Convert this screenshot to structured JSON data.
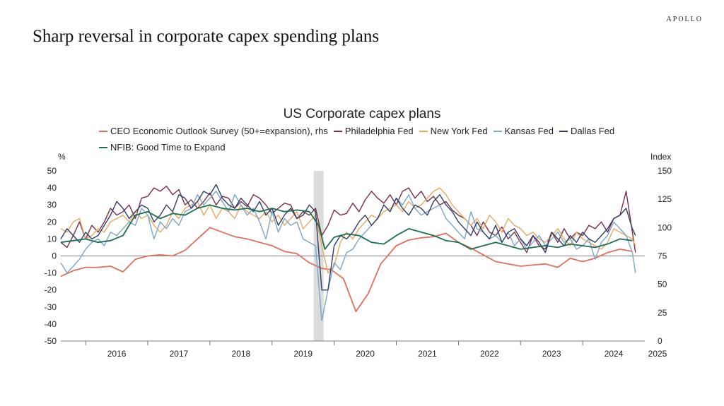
{
  "brand": "APOLLO",
  "page_title": "Sharp reversal in corporate capex spending plans",
  "chart_data": {
    "type": "line",
    "title": "US Corporate capex plans",
    "left_axis_unit": "%",
    "right_axis_unit": "Index",
    "ylim_left": [
      -50,
      50
    ],
    "ylim_right": [
      0,
      150
    ],
    "y_ticks_left": [
      "50",
      "40",
      "30",
      "20",
      "10",
      "0",
      "-10",
      "-20",
      "-30",
      "-40",
      "-50"
    ],
    "y_ticks_right": [
      "150",
      "125",
      "100",
      "75",
      "50",
      "25",
      "0"
    ],
    "x_range": [
      2015.6,
      2025.0
    ],
    "x_ticks": [
      "2016",
      "2017",
      "2018",
      "2019",
      "2020",
      "2021",
      "2022",
      "2023",
      "2024",
      "2025"
    ],
    "shaded_period": [
      2019.67,
      2019.83
    ],
    "grid": false,
    "legend_position": "top",
    "series": [
      {
        "name": "CEO Economic Outlook Survey (50+=expansion), rhs",
        "axis": "right",
        "color": "#e0705c",
        "x": [
          2015.6,
          2015.8,
          2016.0,
          2016.2,
          2016.4,
          2016.6,
          2016.8,
          2017.0,
          2017.2,
          2017.4,
          2017.6,
          2017.8,
          2018.0,
          2018.2,
          2018.4,
          2018.6,
          2018.8,
          2019.0,
          2019.2,
          2019.4,
          2019.6,
          2019.8,
          2019.95,
          2020.15,
          2020.35,
          2020.55,
          2020.75,
          2021.0,
          2021.2,
          2021.4,
          2021.6,
          2021.8,
          2022.0,
          2022.2,
          2022.4,
          2022.6,
          2022.8,
          2023.0,
          2023.2,
          2023.4,
          2023.6,
          2023.8,
          2024.0,
          2024.2,
          2024.4,
          2024.6,
          2024.8
        ],
        "values": [
          57,
          62,
          65,
          65,
          66,
          61,
          72,
          75,
          76,
          75,
          80,
          90,
          100,
          96,
          92,
          90,
          87,
          84,
          79,
          77,
          69,
          64,
          63,
          55,
          26,
          42,
          68,
          84,
          89,
          91,
          92,
          95,
          87,
          82,
          76,
          70,
          68,
          66,
          67,
          68,
          65,
          73,
          70,
          73,
          78,
          81,
          79
        ]
      },
      {
        "name": "Philadelphia Fed",
        "axis": "left",
        "color": "#7b2d4a",
        "x": [
          2015.6,
          2015.7,
          2015.8,
          2015.9,
          2016.0,
          2016.1,
          2016.2,
          2016.3,
          2016.4,
          2016.5,
          2016.6,
          2016.7,
          2016.8,
          2016.9,
          2017.0,
          2017.1,
          2017.2,
          2017.3,
          2017.4,
          2017.5,
          2017.6,
          2017.7,
          2017.8,
          2017.9,
          2018.0,
          2018.1,
          2018.2,
          2018.3,
          2018.4,
          2018.5,
          2018.6,
          2018.7,
          2018.8,
          2018.9,
          2019.0,
          2019.1,
          2019.2,
          2019.3,
          2019.4,
          2019.5,
          2019.6,
          2019.7,
          2019.8,
          2019.9,
          2020.0,
          2020.1,
          2020.2,
          2020.3,
          2020.4,
          2020.5,
          2020.6,
          2020.7,
          2020.8,
          2020.9,
          2021.0,
          2021.1,
          2021.2,
          2021.3,
          2021.4,
          2021.5,
          2021.6,
          2021.7,
          2021.8,
          2021.9,
          2022.0,
          2022.1,
          2022.2,
          2022.3,
          2022.4,
          2022.5,
          2022.6,
          2022.7,
          2022.8,
          2022.9,
          2023.0,
          2023.1,
          2023.2,
          2023.3,
          2023.4,
          2023.5,
          2023.6,
          2023.7,
          2023.8,
          2023.9,
          2024.0,
          2024.1,
          2024.2,
          2024.3,
          2024.4,
          2024.5,
          2024.6,
          2024.7,
          2024.8,
          2024.85
        ],
        "values": [
          8,
          5,
          12,
          20,
          10,
          18,
          14,
          20,
          28,
          24,
          26,
          30,
          22,
          34,
          35,
          40,
          38,
          41,
          36,
          39,
          30,
          33,
          28,
          32,
          37,
          30,
          35,
          34,
          28,
          32,
          29,
          36,
          34,
          30,
          25,
          28,
          31,
          30,
          22,
          26,
          24,
          28,
          12,
          18,
          27,
          24,
          25,
          31,
          26,
          33,
          38,
          34,
          31,
          36,
          30,
          38,
          40,
          34,
          38,
          32,
          35,
          30,
          32,
          27,
          24,
          22,
          18,
          12,
          20,
          14,
          12,
          17,
          10,
          14,
          8,
          2,
          12,
          6,
          4,
          14,
          8,
          16,
          10,
          14,
          12,
          18,
          16,
          20,
          14,
          22,
          24,
          38,
          14,
          2
        ]
      },
      {
        "name": "New York Fed",
        "axis": "left",
        "color": "#e8a860",
        "x": [
          2015.6,
          2015.7,
          2015.8,
          2015.9,
          2016.0,
          2016.1,
          2016.2,
          2016.3,
          2016.4,
          2016.5,
          2016.6,
          2016.7,
          2016.8,
          2016.9,
          2017.0,
          2017.1,
          2017.2,
          2017.3,
          2017.4,
          2017.5,
          2017.6,
          2017.7,
          2017.8,
          2017.9,
          2018.0,
          2018.1,
          2018.2,
          2018.3,
          2018.4,
          2018.5,
          2018.6,
          2018.7,
          2018.8,
          2018.9,
          2019.0,
          2019.1,
          2019.2,
          2019.3,
          2019.4,
          2019.5,
          2019.6,
          2019.7,
          2019.8,
          2019.9,
          2020.0,
          2020.1,
          2020.2,
          2020.3,
          2020.4,
          2020.5,
          2020.6,
          2020.7,
          2020.8,
          2020.9,
          2021.0,
          2021.1,
          2021.2,
          2021.3,
          2021.4,
          2021.5,
          2021.6,
          2021.7,
          2021.8,
          2021.9,
          2022.0,
          2022.1,
          2022.2,
          2022.3,
          2022.4,
          2022.5,
          2022.6,
          2022.7,
          2022.8,
          2022.9,
          2023.0,
          2023.1,
          2023.2,
          2023.3,
          2023.4,
          2023.5,
          2023.6,
          2023.7,
          2023.8,
          2023.9,
          2024.0,
          2024.1,
          2024.2,
          2024.3,
          2024.4,
          2024.5,
          2024.6,
          2024.7,
          2024.8,
          2024.85
        ],
        "values": [
          16,
          14,
          20,
          22,
          10,
          12,
          16,
          14,
          20,
          22,
          24,
          20,
          26,
          22,
          24,
          18,
          14,
          18,
          26,
          22,
          28,
          30,
          32,
          24,
          30,
          22,
          28,
          26,
          22,
          30,
          26,
          24,
          22,
          26,
          20,
          24,
          18,
          22,
          26,
          16,
          20,
          24,
          6,
          -10,
          -6,
          8,
          14,
          10,
          16,
          20,
          24,
          22,
          26,
          28,
          30,
          26,
          32,
          28,
          30,
          34,
          38,
          40,
          36,
          30,
          26,
          22,
          18,
          22,
          16,
          24,
          20,
          14,
          22,
          18,
          16,
          12,
          14,
          10,
          8,
          12,
          16,
          10,
          6,
          14,
          10,
          8,
          6,
          4,
          8,
          16,
          14,
          12,
          10,
          6
        ]
      },
      {
        "name": "Kansas Fed",
        "axis": "left",
        "color": "#7aa6c8",
        "x": [
          2015.6,
          2015.7,
          2015.8,
          2015.9,
          2016.0,
          2016.1,
          2016.2,
          2016.3,
          2016.4,
          2016.5,
          2016.6,
          2016.7,
          2016.8,
          2016.9,
          2017.0,
          2017.1,
          2017.2,
          2017.3,
          2017.4,
          2017.5,
          2017.6,
          2017.7,
          2017.8,
          2017.9,
          2018.0,
          2018.1,
          2018.2,
          2018.3,
          2018.4,
          2018.5,
          2018.6,
          2018.7,
          2018.8,
          2018.9,
          2019.0,
          2019.1,
          2019.2,
          2019.3,
          2019.4,
          2019.5,
          2019.6,
          2019.7,
          2019.8,
          2019.9,
          2020.0,
          2020.1,
          2020.2,
          2020.3,
          2020.4,
          2020.5,
          2020.6,
          2020.7,
          2020.8,
          2020.9,
          2021.0,
          2021.1,
          2021.2,
          2021.3,
          2021.4,
          2021.5,
          2021.6,
          2021.7,
          2021.8,
          2021.9,
          2022.0,
          2022.1,
          2022.2,
          2022.3,
          2022.4,
          2022.5,
          2022.6,
          2022.7,
          2022.8,
          2022.9,
          2023.0,
          2023.1,
          2023.2,
          2023.3,
          2023.4,
          2023.5,
          2023.6,
          2023.7,
          2023.8,
          2023.9,
          2024.0,
          2024.1,
          2024.2,
          2024.3,
          2024.4,
          2024.5,
          2024.6,
          2024.7,
          2024.8,
          2024.85
        ],
        "values": [
          -4,
          -10,
          -6,
          -2,
          4,
          8,
          10,
          6,
          14,
          12,
          16,
          20,
          18,
          28,
          24,
          10,
          20,
          16,
          22,
          18,
          26,
          28,
          36,
          30,
          34,
          38,
          32,
          26,
          36,
          30,
          24,
          28,
          20,
          10,
          26,
          14,
          22,
          18,
          20,
          10,
          8,
          6,
          -38,
          -20,
          -4,
          -8,
          2,
          4,
          10,
          14,
          18,
          22,
          30,
          26,
          34,
          30,
          36,
          28,
          24,
          26,
          28,
          30,
          22,
          18,
          14,
          10,
          26,
          16,
          14,
          10,
          12,
          8,
          14,
          6,
          10,
          4,
          8,
          12,
          6,
          10,
          14,
          8,
          10,
          4,
          6,
          10,
          -2,
          8,
          12,
          20,
          16,
          12,
          2,
          -10
        ]
      },
      {
        "name": "Dallas Fed",
        "axis": "left",
        "color": "#2e3f66",
        "x": [
          2015.6,
          2015.7,
          2015.8,
          2015.9,
          2016.0,
          2016.1,
          2016.2,
          2016.3,
          2016.4,
          2016.5,
          2016.6,
          2016.7,
          2016.8,
          2016.9,
          2017.0,
          2017.1,
          2017.2,
          2017.3,
          2017.4,
          2017.5,
          2017.6,
          2017.7,
          2017.8,
          2017.9,
          2018.0,
          2018.1,
          2018.2,
          2018.3,
          2018.4,
          2018.5,
          2018.6,
          2018.7,
          2018.8,
          2018.9,
          2019.0,
          2019.1,
          2019.2,
          2019.3,
          2019.4,
          2019.5,
          2019.6,
          2019.7,
          2019.8,
          2019.9,
          2020.0,
          2020.1,
          2020.2,
          2020.3,
          2020.4,
          2020.5,
          2020.6,
          2020.7,
          2020.8,
          2020.9,
          2021.0,
          2021.1,
          2021.2,
          2021.3,
          2021.4,
          2021.5,
          2021.6,
          2021.7,
          2021.8,
          2021.9,
          2022.0,
          2022.1,
          2022.2,
          2022.3,
          2022.4,
          2022.5,
          2022.6,
          2022.7,
          2022.8,
          2022.9,
          2023.0,
          2023.1,
          2023.2,
          2023.3,
          2023.4,
          2023.5,
          2023.6,
          2023.7,
          2023.8,
          2023.9,
          2024.0,
          2024.1,
          2024.2,
          2024.3,
          2024.4,
          2024.5,
          2024.6,
          2024.7,
          2024.8,
          2024.85
        ],
        "values": [
          10,
          16,
          12,
          8,
          14,
          10,
          12,
          18,
          24,
          32,
          28,
          22,
          26,
          30,
          28,
          20,
          24,
          30,
          26,
          36,
          34,
          28,
          32,
          38,
          36,
          42,
          34,
          30,
          28,
          34,
          30,
          26,
          32,
          24,
          28,
          18,
          24,
          28,
          22,
          24,
          30,
          26,
          -20,
          -20,
          6,
          12,
          10,
          14,
          20,
          24,
          18,
          22,
          30,
          26,
          34,
          28,
          24,
          30,
          28,
          24,
          32,
          36,
          30,
          26,
          20,
          16,
          12,
          20,
          14,
          10,
          18,
          8,
          14,
          16,
          10,
          6,
          12,
          8,
          2,
          14,
          10,
          6,
          12,
          8,
          14,
          10,
          8,
          12,
          16,
          22,
          24,
          28,
          16,
          12
        ]
      },
      {
        "name": "NFIB: Good Time to Expand",
        "axis": "left",
        "color": "#1e6e52",
        "x": [
          2015.6,
          2015.8,
          2016.0,
          2016.2,
          2016.4,
          2016.6,
          2016.8,
          2017.0,
          2017.2,
          2017.4,
          2017.6,
          2017.8,
          2018.0,
          2018.2,
          2018.4,
          2018.6,
          2018.8,
          2019.0,
          2019.2,
          2019.4,
          2019.6,
          2019.75,
          2019.85,
          2020.0,
          2020.2,
          2020.4,
          2020.6,
          2020.8,
          2021.0,
          2021.2,
          2021.4,
          2021.6,
          2021.8,
          2022.0,
          2022.2,
          2022.4,
          2022.6,
          2022.8,
          2023.0,
          2023.2,
          2023.4,
          2023.6,
          2023.8,
          2024.0,
          2024.2,
          2024.4,
          2024.6,
          2024.8
        ],
        "values": [
          8,
          9,
          10,
          8,
          9,
          12,
          24,
          26,
          22,
          25,
          24,
          28,
          30,
          28,
          27,
          28,
          26,
          28,
          26,
          27,
          26,
          18,
          4,
          11,
          13,
          12,
          8,
          7,
          12,
          16,
          14,
          12,
          9,
          8,
          4,
          6,
          8,
          6,
          4,
          5,
          6,
          5,
          7,
          6,
          5,
          7,
          10,
          9
        ]
      }
    ]
  }
}
